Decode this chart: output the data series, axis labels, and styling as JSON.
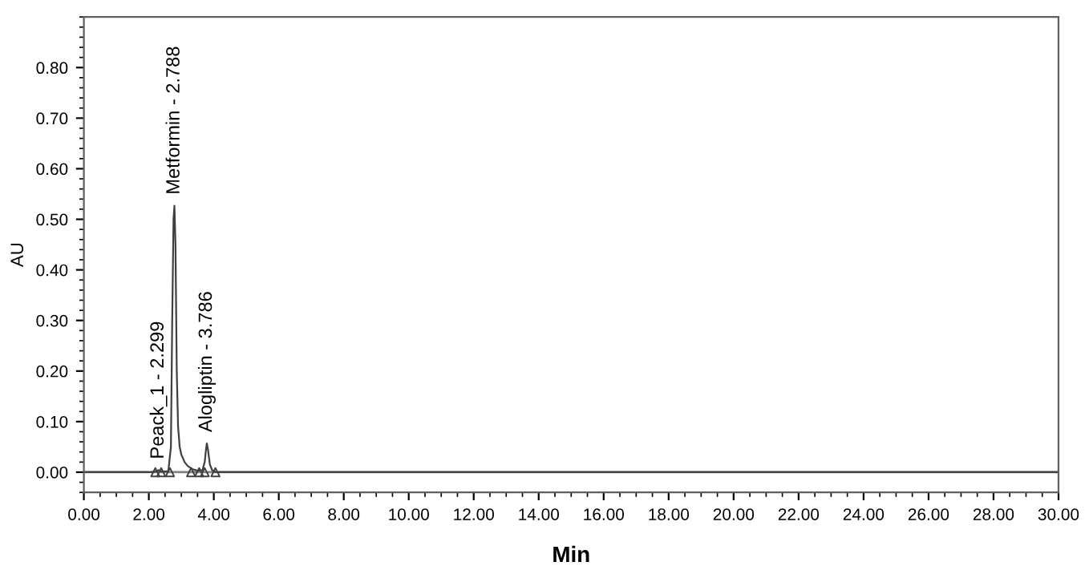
{
  "chart_data": {
    "type": "line",
    "xlabel": "Min",
    "ylabel": "AU",
    "series": [
      {
        "color": "#404040",
        "x": [
          0,
          2.0,
          2.2,
          2.299,
          2.4,
          2.6,
          2.68,
          2.72,
          2.76,
          2.788,
          2.82,
          2.86,
          2.9,
          2.95,
          3.0,
          3.1,
          3.2,
          3.35,
          3.5,
          3.65,
          3.72,
          3.76,
          3.786,
          3.82,
          3.88,
          3.95,
          4.05,
          5,
          30
        ],
        "values": [
          0,
          0,
          0.001,
          0.004,
          0.001,
          0.002,
          0.05,
          0.3,
          0.5,
          0.527,
          0.45,
          0.2,
          0.09,
          0.05,
          0.035,
          0.02,
          0.012,
          0.006,
          0.003,
          0.004,
          0.02,
          0.045,
          0.057,
          0.045,
          0.015,
          0.004,
          0,
          0,
          0
        ]
      },
      {
        "type": "scatter",
        "color": "#404040",
        "marker": "triangle",
        "x": [
          2.2,
          2.38,
          2.65,
          3.3,
          3.55,
          3.72,
          4.05
        ],
        "values": [
          0,
          0,
          0,
          0,
          0,
          0,
          0
        ]
      }
    ],
    "xlim": [
      0,
      30
    ],
    "ylim": [
      -0.04,
      0.9
    ],
    "xticks": [
      {
        "value": 0,
        "label": "0.00"
      },
      {
        "value": 2,
        "label": "2.00"
      },
      {
        "value": 4,
        "label": "4.00"
      },
      {
        "value": 6,
        "label": "6.00"
      },
      {
        "value": 8,
        "label": "8.00"
      },
      {
        "value": 10,
        "label": "10.00"
      },
      {
        "value": 12,
        "label": "12.00"
      },
      {
        "value": 14,
        "label": "14.00"
      },
      {
        "value": 16,
        "label": "16.00"
      },
      {
        "value": 18,
        "label": "18.00"
      },
      {
        "value": 20,
        "label": "20.00"
      },
      {
        "value": 22,
        "label": "22.00"
      },
      {
        "value": 24,
        "label": "24.00"
      },
      {
        "value": 26,
        "label": "26.00"
      },
      {
        "value": 28,
        "label": "28.00"
      },
      {
        "value": 30,
        "label": "30.00"
      }
    ],
    "yticks": [
      {
        "value": 0,
        "label": "0.00"
      },
      {
        "value": 0.1,
        "label": "0.10"
      },
      {
        "value": 0.2,
        "label": "0.20"
      },
      {
        "value": 0.3,
        "label": "0.30"
      },
      {
        "value": 0.4,
        "label": "0.40"
      },
      {
        "value": 0.5,
        "label": "0.50"
      },
      {
        "value": 0.6,
        "label": "0.60"
      },
      {
        "value": 0.7,
        "label": "0.70"
      },
      {
        "value": 0.8,
        "label": "0.80"
      }
    ],
    "ref_lines": [
      {
        "axis": "y",
        "value": 0,
        "color": "#808080"
      }
    ],
    "annotations": [
      {
        "text": "Peack_1 - 2.299",
        "x": 2.299,
        "y": 0.004
      },
      {
        "text": "Metformin - 2.788",
        "x": 2.788,
        "y": 0.527
      },
      {
        "text": "Alogliptin - 3.786",
        "x": 3.786,
        "y": 0.057
      }
    ],
    "grid": false,
    "legend": false
  }
}
